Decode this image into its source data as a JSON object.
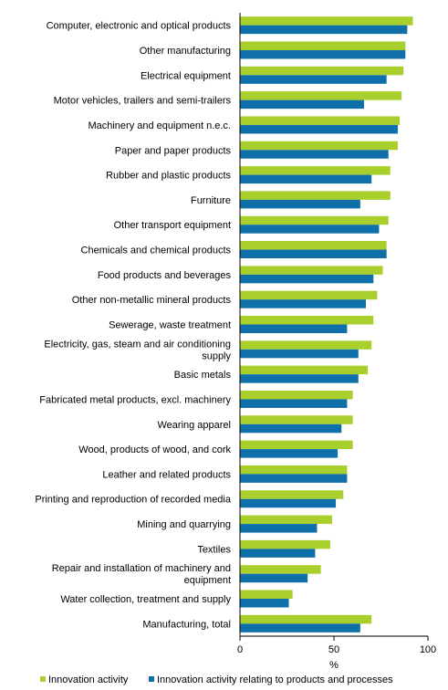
{
  "chart_data": {
    "type": "bar",
    "orientation": "horizontal",
    "categories": [
      "Computer, electronic and optical products",
      "Other manufacturing",
      "Electrical equipment",
      "Motor vehicles, trailers and semi-trailers",
      "Machinery and equipment n.e.c.",
      "Paper and paper products",
      "Rubber and plastic products",
      "Furniture",
      "Other transport equipment",
      "Chemicals and chemical products",
      "Food products and beverages",
      "Other non-metallic mineral products",
      "Sewerage, waste treatment",
      "Electricity, gas, steam and air conditioning supply",
      "Basic metals",
      "Fabricated metal products, excl. machinery",
      "Wearing apparel",
      "Wood, products of wood, and cork",
      "Leather and related products",
      "Printing and reproduction of recorded media",
      "Mining and quarrying",
      "Textiles",
      "Repair and installation of machinery and equipment",
      "Water collection, treatment and supply",
      "Manufacturing, total"
    ],
    "series": [
      {
        "name": "Innovation activity",
        "color": "#a8cf2c",
        "values": [
          92,
          88,
          87,
          86,
          85,
          84,
          80,
          80,
          79,
          78,
          76,
          73,
          71,
          70,
          68,
          60,
          60,
          60,
          57,
          55,
          49,
          48,
          43,
          28,
          70
        ]
      },
      {
        "name": "Innovation activity relating to products and processes",
        "color": "#0f6fa8",
        "values": [
          89,
          88,
          78,
          66,
          84,
          79,
          70,
          64,
          74,
          78,
          71,
          67,
          57,
          63,
          63,
          57,
          54,
          52,
          57,
          51,
          41,
          40,
          36,
          26,
          64
        ]
      }
    ],
    "xlim": [
      0,
      100
    ],
    "xticks": [
      "0",
      "50",
      "100"
    ],
    "xlabel": "%",
    "grid": false,
    "legend_position": "bottom"
  }
}
